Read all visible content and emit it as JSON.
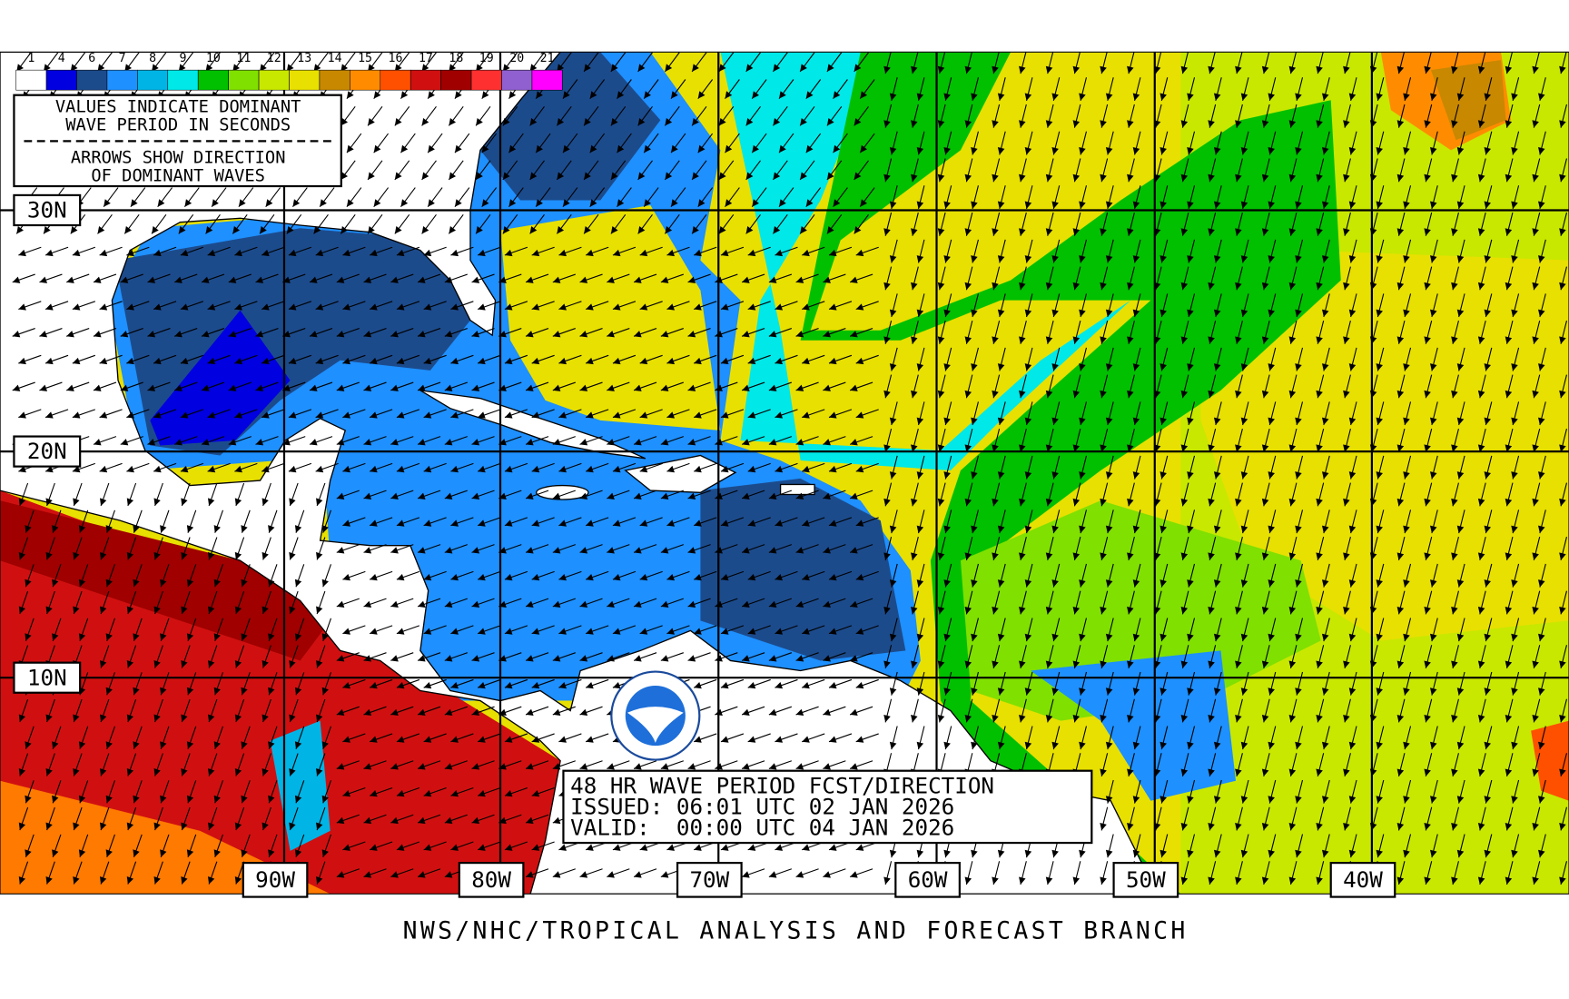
{
  "legend": {
    "items": [
      {
        "label": "1",
        "color": "#ffffff"
      },
      {
        "label": "4",
        "color": "#0000e0"
      },
      {
        "label": "6",
        "color": "#1c4b8c"
      },
      {
        "label": "7",
        "color": "#1e90ff"
      },
      {
        "label": "8",
        "color": "#00b4e6"
      },
      {
        "label": "9",
        "color": "#00e8e8"
      },
      {
        "label": "10",
        "color": "#00c000"
      },
      {
        "label": "11",
        "color": "#80e000"
      },
      {
        "label": "12",
        "color": "#c8e800"
      },
      {
        "label": "13",
        "color": "#e8e000"
      },
      {
        "label": "14",
        "color": "#c88800"
      },
      {
        "label": "15",
        "color": "#ff8c00"
      },
      {
        "label": "16",
        "color": "#ff5000"
      },
      {
        "label": "17",
        "color": "#d01010"
      },
      {
        "label": "18",
        "color": "#a00000"
      },
      {
        "label": "19",
        "color": "#ff3030"
      },
      {
        "label": "20",
        "color": "#9060d0"
      },
      {
        "label": "21",
        "color": "#ff00ff"
      }
    ]
  },
  "notes": {
    "lines": [
      "VALUES INDICATE DOMINANT",
      "WAVE PERIOD IN SECONDS",
      "ARROWS SHOW DIRECTION",
      "OF DOMINANT WAVES"
    ]
  },
  "latitudes": [
    "30N",
    "20N",
    "10N"
  ],
  "longitudes": [
    "90W",
    "80W",
    "70W",
    "60W",
    "50W",
    "40W"
  ],
  "info": {
    "lines": [
      "48 HR WAVE PERIOD FCST/DIRECTION",
      "ISSUED: 06:01 UTC 02 JAN 2026",
      "VALID:  00:00 UTC 04 JAN 2026"
    ]
  },
  "footer": "NWS/NHC/TROPICAL ANALYSIS AND FORECAST BRANCH"
}
